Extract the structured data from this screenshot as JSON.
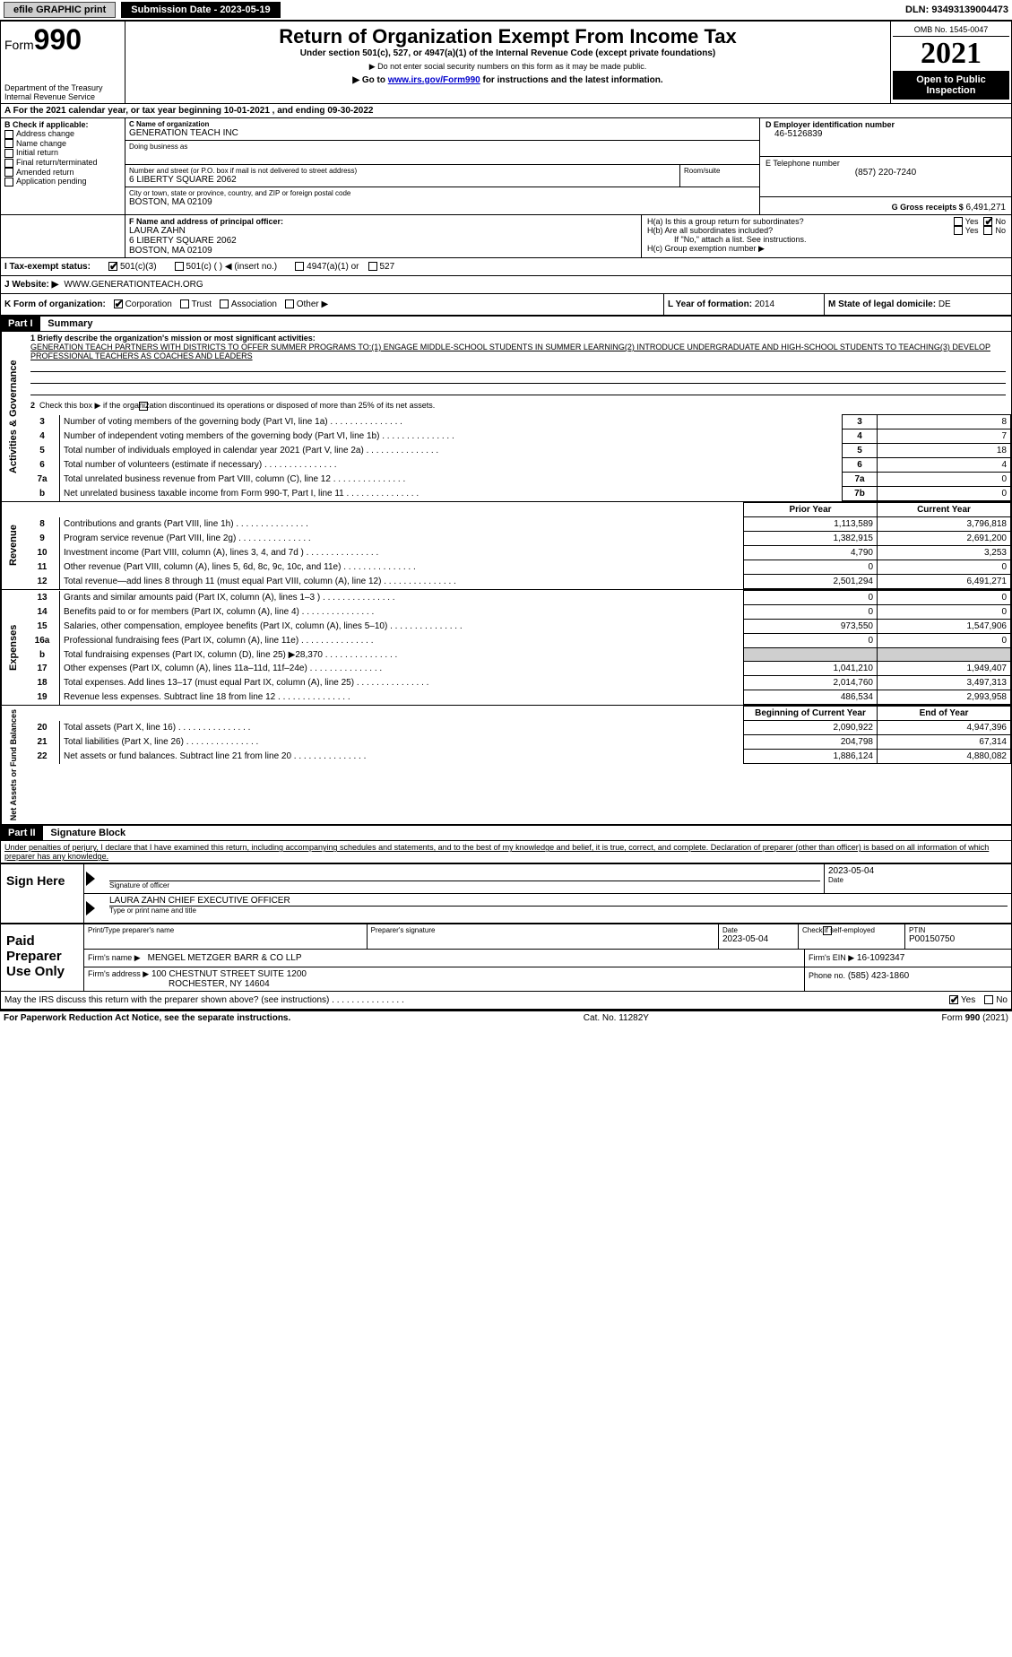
{
  "topbar": {
    "efile": "efile GRAPHIC print",
    "submission_label": "Submission Date - 2023-05-19",
    "dln": "DLN: 93493139004473"
  },
  "header": {
    "form_prefix": "Form",
    "form_number": "990",
    "title": "Return of Organization Exempt From Income Tax",
    "subtitle": "Under section 501(c), 527, or 4947(a)(1) of the Internal Revenue Code (except private foundations)",
    "note1": "▶ Do not enter social security numbers on this form as it may be made public.",
    "note2_prefix": "▶ Go to ",
    "note2_link": "www.irs.gov/Form990",
    "note2_suffix": " for instructions and the latest information.",
    "dept": "Department of the Treasury",
    "irs": "Internal Revenue Service",
    "omb": "OMB No. 1545-0047",
    "year": "2021",
    "open": "Open to Public Inspection"
  },
  "sectionA": {
    "line": "A For the 2021 calendar year, or tax year beginning 10-01-2021   , and ending 09-30-2022"
  },
  "sectionB": {
    "header": "B Check if applicable:",
    "opt1": "Address change",
    "opt2": "Name change",
    "opt3": "Initial return",
    "opt4": "Final return/terminated",
    "opt5": "Amended return",
    "opt6": "Application pending"
  },
  "sectionC": {
    "name_label": "C Name of organization",
    "name": "GENERATION TEACH INC",
    "dba_label": "Doing business as",
    "addr_label": "Number and street (or P.O. box if mail is not delivered to street address)",
    "room_label": "Room/suite",
    "addr": "6 LIBERTY SQUARE 2062",
    "city_label": "City or town, state or province, country, and ZIP or foreign postal code",
    "city": "BOSTON, MA  02109"
  },
  "sectionD": {
    "label": "D Employer identification number",
    "value": "46-5126839"
  },
  "sectionE": {
    "label": "E Telephone number",
    "value": "(857) 220-7240"
  },
  "sectionG": {
    "label": "G Gross receipts $",
    "value": "6,491,271"
  },
  "sectionF": {
    "label": "F Name and address of principal officer:",
    "name": "LAURA ZAHN",
    "addr1": "6 LIBERTY SQUARE 2062",
    "addr2": "BOSTON, MA  02109"
  },
  "sectionH": {
    "a": "H(a)  Is this a group return for subordinates?",
    "b": "H(b)  Are all subordinates included?",
    "b_note": "If \"No,\" attach a list. See instructions.",
    "c": "H(c)  Group exemption number ▶",
    "yes": "Yes",
    "no": "No"
  },
  "sectionI": {
    "label": "I   Tax-exempt status:",
    "opt1": "501(c)(3)",
    "opt2": "501(c) (  ) ◀ (insert no.)",
    "opt3": "4947(a)(1) or",
    "opt4": "527"
  },
  "sectionJ": {
    "label": "J   Website: ▶",
    "value": "WWW.GENERATIONTEACH.ORG"
  },
  "sectionK": {
    "label": "K Form of organization:",
    "opt1": "Corporation",
    "opt2": "Trust",
    "opt3": "Association",
    "opt4": "Other ▶"
  },
  "sectionL": {
    "label": "L Year of formation:",
    "value": "2014"
  },
  "sectionM": {
    "label": "M State of legal domicile:",
    "value": "DE"
  },
  "part1": {
    "header": "Part I",
    "title": "Summary",
    "vert_ag": "Activities & Governance",
    "vert_rev": "Revenue",
    "vert_exp": "Expenses",
    "vert_net": "Net Assets or Fund Balances",
    "line1_label": "1 Briefly describe the organization's mission or most significant activities:",
    "line1_text": "GENERATION TEACH PARTNERS WITH DISTRICTS TO OFFER SUMMER PROGRAMS TO:(1) ENGAGE MIDDLE-SCHOOL STUDENTS IN SUMMER LEARNING(2) INTRODUCE UNDERGRADUATE AND HIGH-SCHOOL STUDENTS TO TEACHING(3) DEVELOP PROFESSIONAL TEACHERS AS COACHES AND LEADERS",
    "line2": "Check this box ▶      if the organization discontinued its operations or disposed of more than 25% of its net assets.",
    "rows_ag": [
      {
        "n": "3",
        "label": "Number of voting members of the governing body (Part VI, line 1a)",
        "box": "3",
        "val": "8"
      },
      {
        "n": "4",
        "label": "Number of independent voting members of the governing body (Part VI, line 1b)",
        "box": "4",
        "val": "7"
      },
      {
        "n": "5",
        "label": "Total number of individuals employed in calendar year 2021 (Part V, line 2a)",
        "box": "5",
        "val": "18"
      },
      {
        "n": "6",
        "label": "Total number of volunteers (estimate if necessary)",
        "box": "6",
        "val": "4"
      },
      {
        "n": "7a",
        "label": "Total unrelated business revenue from Part VIII, column (C), line 12",
        "box": "7a",
        "val": "0"
      },
      {
        "n": "b",
        "label": "Net unrelated business taxable income from Form 990-T, Part I, line 11",
        "box": "7b",
        "val": "0"
      }
    ],
    "col_prior": "Prior Year",
    "col_current": "Current Year",
    "rows_rev": [
      {
        "n": "8",
        "label": "Contributions and grants (Part VIII, line 1h)",
        "prior": "1,113,589",
        "curr": "3,796,818"
      },
      {
        "n": "9",
        "label": "Program service revenue (Part VIII, line 2g)",
        "prior": "1,382,915",
        "curr": "2,691,200"
      },
      {
        "n": "10",
        "label": "Investment income (Part VIII, column (A), lines 3, 4, and 7d )",
        "prior": "4,790",
        "curr": "3,253"
      },
      {
        "n": "11",
        "label": "Other revenue (Part VIII, column (A), lines 5, 6d, 8c, 9c, 10c, and 11e)",
        "prior": "0",
        "curr": "0"
      },
      {
        "n": "12",
        "label": "Total revenue—add lines 8 through 11 (must equal Part VIII, column (A), line 12)",
        "prior": "2,501,294",
        "curr": "6,491,271"
      }
    ],
    "rows_exp": [
      {
        "n": "13",
        "label": "Grants and similar amounts paid (Part IX, column (A), lines 1–3 )",
        "prior": "0",
        "curr": "0"
      },
      {
        "n": "14",
        "label": "Benefits paid to or for members (Part IX, column (A), line 4)",
        "prior": "0",
        "curr": "0"
      },
      {
        "n": "15",
        "label": "Salaries, other compensation, employee benefits (Part IX, column (A), lines 5–10)",
        "prior": "973,550",
        "curr": "1,547,906"
      },
      {
        "n": "16a",
        "label": "Professional fundraising fees (Part IX, column (A), line 11e)",
        "prior": "0",
        "curr": "0"
      },
      {
        "n": "b",
        "label": "Total fundraising expenses (Part IX, column (D), line 25) ▶28,370",
        "prior": "",
        "curr": "",
        "shaded": true
      },
      {
        "n": "17",
        "label": "Other expenses (Part IX, column (A), lines 11a–11d, 11f–24e)",
        "prior": "1,041,210",
        "curr": "1,949,407"
      },
      {
        "n": "18",
        "label": "Total expenses. Add lines 13–17 (must equal Part IX, column (A), line 25)",
        "prior": "2,014,760",
        "curr": "3,497,313"
      },
      {
        "n": "19",
        "label": "Revenue less expenses. Subtract line 18 from line 12",
        "prior": "486,534",
        "curr": "2,993,958"
      }
    ],
    "col_begin": "Beginning of Current Year",
    "col_end": "End of Year",
    "rows_net": [
      {
        "n": "20",
        "label": "Total assets (Part X, line 16)",
        "prior": "2,090,922",
        "curr": "4,947,396"
      },
      {
        "n": "21",
        "label": "Total liabilities (Part X, line 26)",
        "prior": "204,798",
        "curr": "67,314"
      },
      {
        "n": "22",
        "label": "Net assets or fund balances. Subtract line 21 from line 20",
        "prior": "1,886,124",
        "curr": "4,880,082"
      }
    ]
  },
  "part2": {
    "header": "Part II",
    "title": "Signature Block",
    "declaration": "Under penalties of perjury, I declare that I have examined this return, including accompanying schedules and statements, and to the best of my knowledge and belief, it is true, correct, and complete. Declaration of preparer (other than officer) is based on all information of which preparer has any knowledge."
  },
  "sign": {
    "label": "Sign Here",
    "sig_label": "Signature of officer",
    "date_label": "Date",
    "date": "2023-05-04",
    "name": "LAURA ZAHN CHIEF EXECUTIVE OFFICER",
    "name_label": "Type or print name and title"
  },
  "preparer": {
    "label": "Paid Preparer Use Only",
    "name_label": "Print/Type preparer's name",
    "sig_label": "Preparer's signature",
    "date_label": "Date",
    "date": "2023-05-04",
    "check_label": "Check        if self-employed",
    "ptin_label": "PTIN",
    "ptin": "P00150750",
    "firm_name_label": "Firm's name    ▶",
    "firm_name": "MENGEL METZGER BARR & CO LLP",
    "firm_ein_label": "Firm's EIN ▶",
    "firm_ein": "16-1092347",
    "firm_addr_label": "Firm's address ▶",
    "firm_addr1": "100 CHESTNUT STREET SUITE 1200",
    "firm_addr2": "ROCHESTER, NY  14604",
    "phone_label": "Phone no.",
    "phone": "(585) 423-1860"
  },
  "discuss": {
    "text": "May the IRS discuss this return with the preparer shown above? (see instructions)",
    "yes": "Yes",
    "no": "No"
  },
  "footer": {
    "left": "For Paperwork Reduction Act Notice, see the separate instructions.",
    "center": "Cat. No. 11282Y",
    "right": "Form 990 (2021)"
  }
}
